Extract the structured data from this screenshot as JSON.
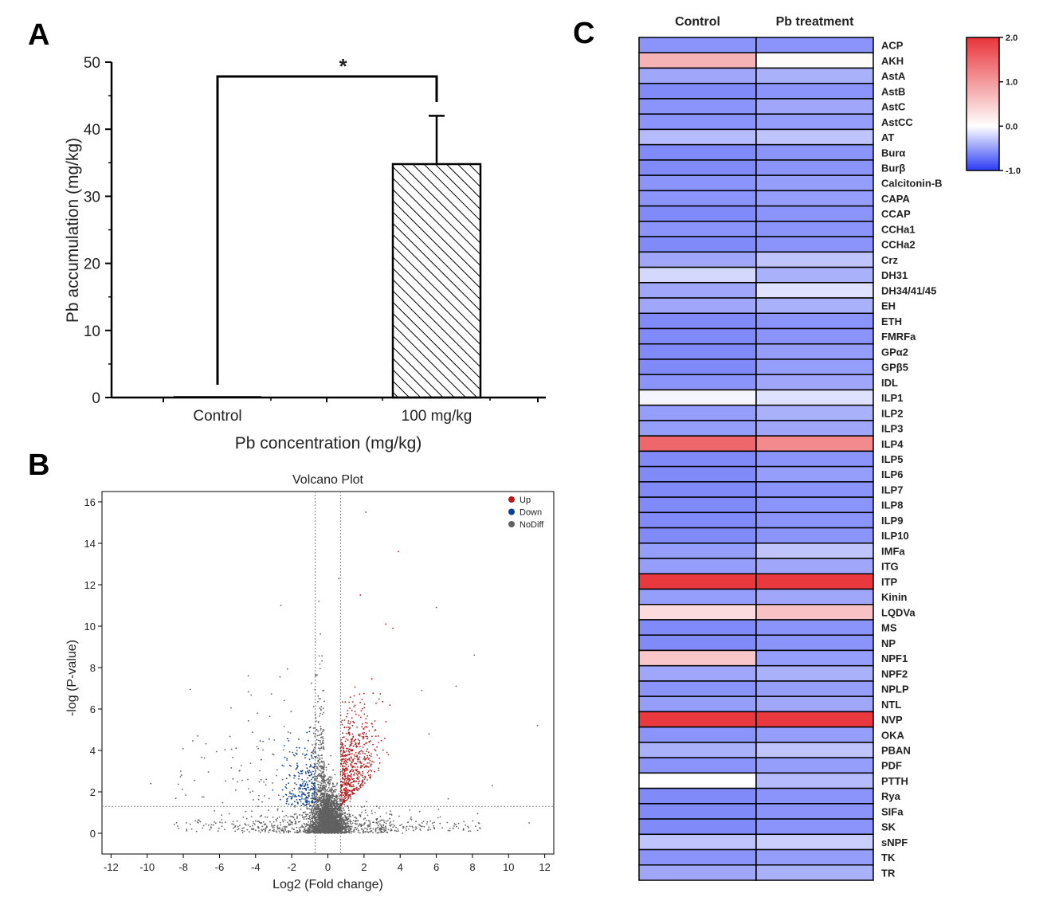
{
  "panels": {
    "a": "A",
    "b": "B",
    "c": "C"
  },
  "chart_data": [
    {
      "panel": "A",
      "type": "bar",
      "categories": [
        "Control",
        "100 mg/kg"
      ],
      "values": [
        0,
        34.8
      ],
      "error": [
        0,
        7.2
      ],
      "xlabel": "Pb concentration (mg/kg)",
      "ylabel": "Pb accumulation (mg/kg)",
      "ylim": [
        0,
        50
      ],
      "yticks": [
        "0",
        "10",
        "20",
        "30",
        "40",
        "50"
      ],
      "significance": "*",
      "hatch": "diagonal",
      "bar_fill": "#ffffff",
      "bar_stroke": "#000000"
    },
    {
      "panel": "B",
      "type": "scatter",
      "title": "Volcano Plot",
      "xlabel": "Log2 (Fold change)",
      "ylabel": "-log (P-value)",
      "xlim": [
        -12.5,
        12.5
      ],
      "ylim": [
        -1,
        16.5
      ],
      "xticks": [
        "-12",
        "-10",
        "-8",
        "-6",
        "-4",
        "-2",
        "0",
        "2",
        "4",
        "6",
        "8",
        "10",
        "12"
      ],
      "yticks": [
        "0",
        "2",
        "4",
        "6",
        "8",
        "10",
        "12",
        "14",
        "16"
      ],
      "thresholds": {
        "x": [
          -0.7,
          0.7
        ],
        "y": 1.3
      },
      "legend": [
        {
          "name": "Up",
          "color": "#b71c1c"
        },
        {
          "name": "Down",
          "color": "#0d3f8f"
        },
        {
          "name": "NoDiff",
          "color": "#616161"
        }
      ],
      "legend_position": "top-right",
      "grid": false,
      "outliers": [
        {
          "x": 2.1,
          "y": 15.5,
          "group": "Up"
        },
        {
          "x": 3.9,
          "y": 13.6,
          "group": "Up"
        },
        {
          "x": 0.6,
          "y": 12.3,
          "group": "NoDiff"
        },
        {
          "x": 1.8,
          "y": 11.5,
          "group": "Up"
        },
        {
          "x": -0.5,
          "y": 11.2,
          "group": "NoDiff"
        },
        {
          "x": -2.6,
          "y": 11.0,
          "group": "NoDiff"
        },
        {
          "x": 6.0,
          "y": 10.9,
          "group": "NoDiff"
        },
        {
          "x": 3.2,
          "y": 10.1,
          "group": "Up"
        },
        {
          "x": 3.6,
          "y": 9.9,
          "group": "Up"
        },
        {
          "x": 8.1,
          "y": 8.6,
          "group": "NoDiff"
        },
        {
          "x": -4.4,
          "y": 7.6,
          "group": "NoDiff"
        },
        {
          "x": 5.2,
          "y": 6.9,
          "group": "NoDiff"
        },
        {
          "x": 7.1,
          "y": 7.1,
          "group": "NoDiff"
        },
        {
          "x": 11.6,
          "y": 5.2,
          "group": "NoDiff"
        },
        {
          "x": -7.2,
          "y": 4.7,
          "group": "NoDiff"
        },
        {
          "x": -9.8,
          "y": 2.4,
          "group": "NoDiff"
        },
        {
          "x": -8.1,
          "y": 2.8,
          "group": "NoDiff"
        },
        {
          "x": 9.1,
          "y": 2.3,
          "group": "NoDiff"
        },
        {
          "x": 5.6,
          "y": 4.8,
          "group": "NoDiff"
        }
      ]
    },
    {
      "panel": "C",
      "type": "heatmap",
      "columns": [
        "Control",
        "Pb treatment"
      ],
      "scale": {
        "min": -1.0,
        "max": 2.0,
        "ticks": [
          "2.0",
          "1.0",
          "0.0",
          "-1.0"
        ]
      },
      "colors": {
        "low": "#2b3cf5",
        "mid": "#ffffff",
        "high": "#e8343a"
      },
      "rows": [
        "ACP",
        "AKH",
        "AstA",
        "AstB",
        "AstC",
        "AstCC",
        "AT",
        "Burα",
        "Burβ",
        "Calcitonin-B",
        "CAPA",
        "CCAP",
        "CCHa1",
        "CCHa2",
        "Crz",
        "DH31",
        "DH34/41/45",
        "EH",
        "ETH",
        "FMRFa",
        "GPα2",
        "GPβ5",
        "IDL",
        "ILP1",
        "ILP2",
        "ILP3",
        "ILP4",
        "ILP5",
        "ILP6",
        "ILP7",
        "ILP8",
        "ILP9",
        "ILP10",
        "IMFa",
        "ITG",
        "ITP",
        "Kinin",
        "LQDVa",
        "MS",
        "NP",
        "NPF1",
        "NPF2",
        "NPLP",
        "NTL",
        "NVP",
        "OKA",
        "PBAN",
        "PDF",
        "PTTH",
        "Rya",
        "SIFa",
        "SK",
        "sNPF",
        "TK",
        "TR"
      ],
      "values": [
        [
          -0.55,
          -0.55
        ],
        [
          0.75,
          0.05
        ],
        [
          -0.45,
          -0.4
        ],
        [
          -0.6,
          -0.55
        ],
        [
          -0.55,
          -0.45
        ],
        [
          -0.55,
          -0.5
        ],
        [
          -0.35,
          -0.3
        ],
        [
          -0.6,
          -0.55
        ],
        [
          -0.6,
          -0.55
        ],
        [
          -0.55,
          -0.5
        ],
        [
          -0.55,
          -0.5
        ],
        [
          -0.6,
          -0.55
        ],
        [
          -0.55,
          -0.55
        ],
        [
          -0.6,
          -0.55
        ],
        [
          -0.45,
          -0.3
        ],
        [
          -0.2,
          -0.4
        ],
        [
          -0.45,
          -0.15
        ],
        [
          -0.45,
          -0.4
        ],
        [
          -0.6,
          -0.55
        ],
        [
          -0.6,
          -0.55
        ],
        [
          -0.6,
          -0.5
        ],
        [
          -0.6,
          -0.5
        ],
        [
          -0.55,
          -0.45
        ],
        [
          -0.05,
          -0.15
        ],
        [
          -0.5,
          -0.4
        ],
        [
          -0.5,
          -0.45
        ],
        [
          1.5,
          1.15
        ],
        [
          -0.6,
          -0.55
        ],
        [
          -0.6,
          -0.5
        ],
        [
          -0.6,
          -0.55
        ],
        [
          -0.6,
          -0.55
        ],
        [
          -0.6,
          -0.55
        ],
        [
          -0.6,
          -0.55
        ],
        [
          -0.5,
          -0.3
        ],
        [
          -0.5,
          -0.45
        ],
        [
          1.95,
          1.95
        ],
        [
          -0.5,
          -0.45
        ],
        [
          0.35,
          0.6
        ],
        [
          -0.6,
          -0.55
        ],
        [
          -0.6,
          -0.55
        ],
        [
          0.55,
          -0.5
        ],
        [
          -0.45,
          -0.4
        ],
        [
          -0.55,
          -0.5
        ],
        [
          -0.5,
          -0.45
        ],
        [
          1.95,
          1.95
        ],
        [
          -0.55,
          -0.5
        ],
        [
          -0.4,
          -0.3
        ],
        [
          -0.55,
          -0.5
        ],
        [
          0.0,
          -0.35
        ],
        [
          -0.6,
          -0.55
        ],
        [
          -0.6,
          -0.55
        ],
        [
          -0.6,
          -0.55
        ],
        [
          -0.3,
          -0.25
        ],
        [
          -0.55,
          -0.5
        ],
        [
          -0.45,
          -0.4
        ]
      ]
    }
  ]
}
